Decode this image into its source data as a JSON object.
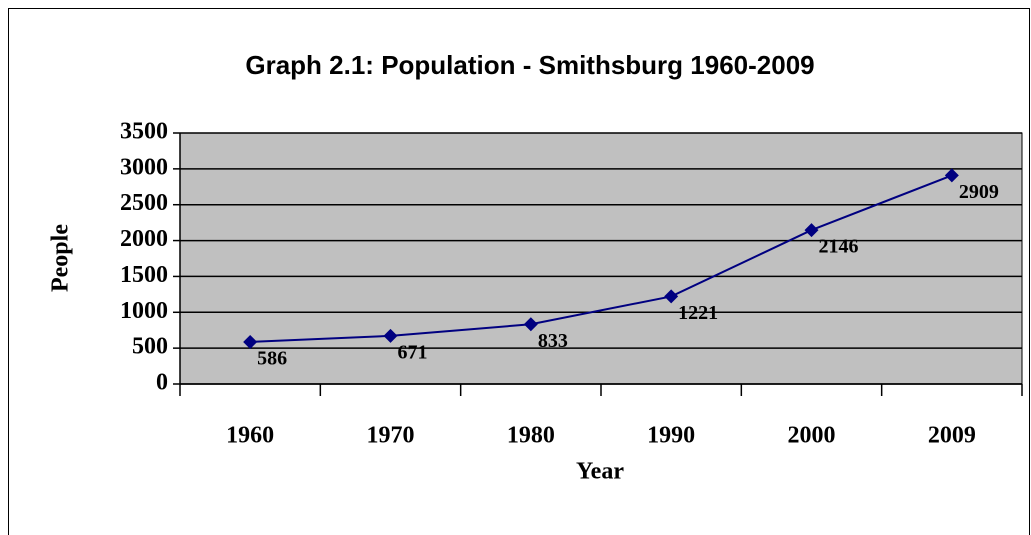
{
  "chart_data": {
    "type": "line",
    "title": "Graph 2.1: Population - Smithsburg 1960-2009",
    "x_label": "Year",
    "y_label": "People",
    "categories": [
      "1960",
      "1970",
      "1980",
      "1990",
      "2000",
      "2009"
    ],
    "values": [
      586,
      671,
      833,
      1221,
      2146,
      2909
    ],
    "color": "#000080",
    "plot_background": "#c0c0c0",
    "ylim": [
      0,
      3500
    ],
    "yticks": [
      0,
      500,
      1000,
      1500,
      2000,
      2500,
      3000,
      3500
    ],
    "grid": true
  }
}
